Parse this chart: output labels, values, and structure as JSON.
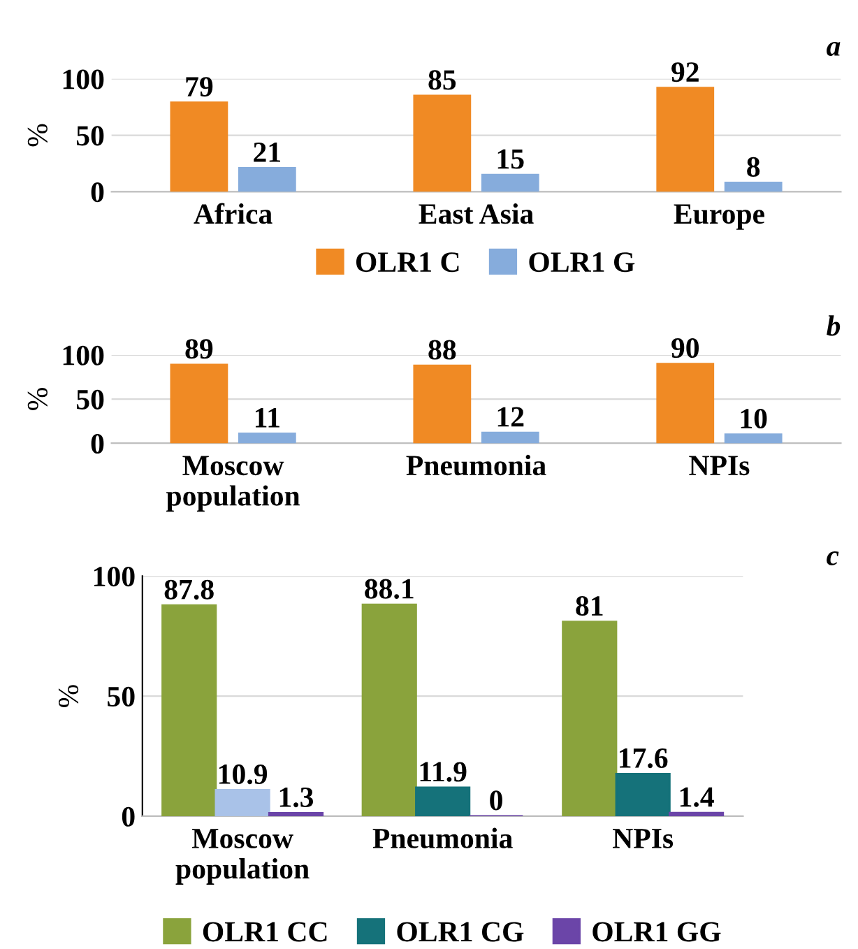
{
  "chart_data": [
    {
      "type": "bar",
      "ylabel": "%",
      "categories": [
        "Africa",
        "East Asia",
        "Europe"
      ],
      "ylim": [
        0,
        100
      ],
      "yticks": [
        0,
        50,
        100
      ],
      "grid": "y",
      "legend": "bottom",
      "data_labels": true,
      "annotations": [
        "a"
      ],
      "series": [
        {
          "name": "OLR1 C",
          "color": "#f08a24",
          "values": [
            79,
            85,
            92
          ]
        },
        {
          "name": "OLR1 G",
          "color": "#86acdc",
          "values": [
            21,
            15,
            8
          ]
        }
      ]
    },
    {
      "type": "bar",
      "ylabel": "%",
      "categories": [
        "Moscow\npopulation",
        "Pneumonia",
        "NPIs"
      ],
      "ylim": [
        0,
        100
      ],
      "yticks": [
        0,
        50,
        100
      ],
      "grid": "y",
      "data_labels": true,
      "annotations": [
        "b"
      ],
      "series": [
        {
          "color": "#f08a24",
          "values": [
            89,
            88,
            90
          ]
        },
        {
          "color": "#86acdc",
          "values": [
            11,
            12,
            10
          ]
        }
      ]
    },
    {
      "type": "bar",
      "ylabel": "%",
      "categories": [
        "Moscow\npopulation",
        "Pneumonia",
        "NPIs"
      ],
      "ylim": [
        0,
        100
      ],
      "yticks": [
        0,
        50,
        100
      ],
      "grid": "y",
      "legend": "bottom",
      "data_labels": true,
      "annotations": [
        "c"
      ],
      "series": [
        {
          "name": "OLR1 CC",
          "color": "#8aa33c",
          "values": [
            87.8,
            88.1,
            81
          ]
        },
        {
          "name": "OLR1 CG",
          "colors": [
            "#a9c2e8",
            "#15727a",
            "#15727a"
          ],
          "values": [
            10.9,
            11.9,
            17.6
          ]
        },
        {
          "name": "OLR1 GG",
          "color": "#6b45a8",
          "values": [
            1.3,
            0,
            1.4
          ]
        }
      ]
    }
  ]
}
